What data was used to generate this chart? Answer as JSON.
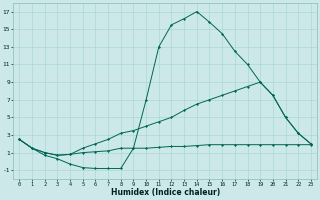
{
  "xlabel": "Humidex (Indice chaleur)",
  "bg_color": "#cce8e8",
  "grid_color": "#aad8d8",
  "line_color": "#006655",
  "ylim": [
    -2,
    18
  ],
  "xlim": [
    -0.5,
    23.5
  ],
  "yticks": [
    -1,
    1,
    3,
    5,
    7,
    9,
    11,
    13,
    15,
    17
  ],
  "xticks": [
    0,
    1,
    2,
    3,
    4,
    5,
    6,
    7,
    8,
    9,
    10,
    11,
    12,
    13,
    14,
    15,
    16,
    17,
    18,
    19,
    20,
    21,
    22,
    23
  ],
  "line1_x": [
    0,
    1,
    2,
    3,
    4,
    5,
    6,
    7,
    8,
    9,
    10,
    11,
    12,
    13,
    14,
    15,
    16,
    17,
    18,
    19,
    20,
    21,
    22,
    23
  ],
  "line1_y": [
    2.5,
    1.5,
    1.0,
    0.7,
    0.8,
    1.0,
    1.1,
    1.2,
    1.5,
    1.5,
    1.5,
    1.6,
    1.7,
    1.7,
    1.8,
    1.9,
    1.9,
    1.9,
    1.9,
    1.9,
    1.9,
    1.9,
    1.9,
    1.9
  ],
  "line2_x": [
    0,
    1,
    2,
    3,
    4,
    5,
    6,
    7,
    8,
    9,
    10,
    11,
    12,
    13,
    14,
    15,
    16,
    17,
    18,
    19,
    20,
    21,
    22,
    23
  ],
  "line2_y": [
    2.5,
    1.5,
    0.7,
    0.3,
    -0.3,
    -0.7,
    -0.8,
    -0.8,
    -0.8,
    1.5,
    7.0,
    13.0,
    15.5,
    16.2,
    17.0,
    15.8,
    14.5,
    12.5,
    11.0,
    9.0,
    7.5,
    5.0,
    3.2,
    2.0
  ],
  "line3_x": [
    0,
    1,
    2,
    3,
    4,
    5,
    6,
    7,
    8,
    9,
    10,
    11,
    12,
    13,
    14,
    15,
    16,
    17,
    18,
    19,
    20,
    21,
    22,
    23
  ],
  "line3_y": [
    2.5,
    1.5,
    1.0,
    0.7,
    0.8,
    1.5,
    2.0,
    2.5,
    3.2,
    3.5,
    4.0,
    4.5,
    5.0,
    5.8,
    6.5,
    7.0,
    7.5,
    8.0,
    8.5,
    9.0,
    7.5,
    5.0,
    3.2,
    2.0
  ]
}
